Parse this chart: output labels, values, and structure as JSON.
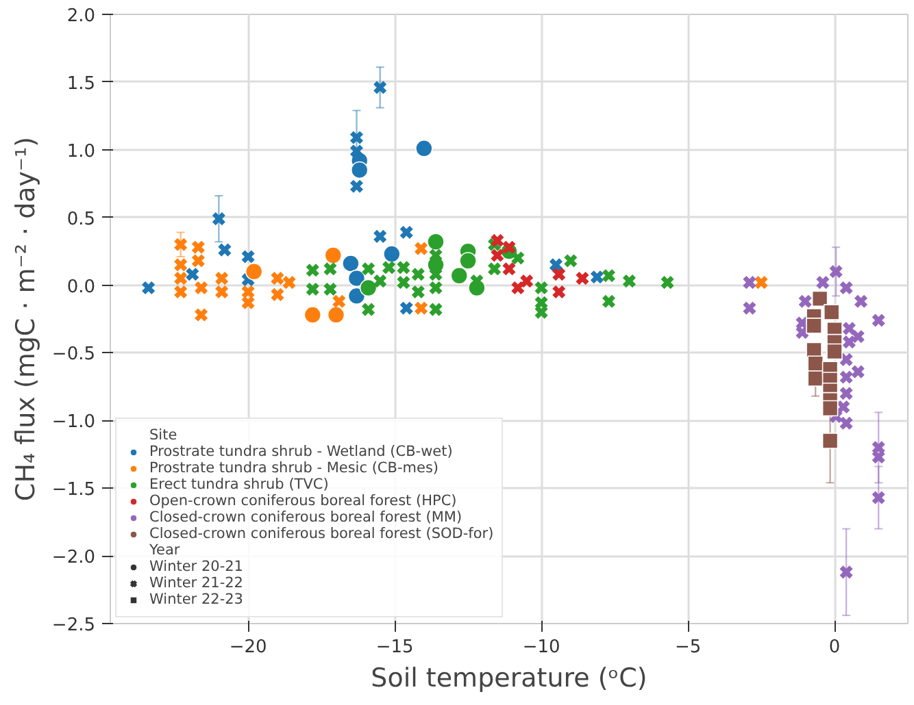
{
  "chart_data": {
    "type": "scatter",
    "xlabel": "Soil temperature (ᵒC)",
    "ylabel": "CH₄ flux (mgC · m⁻² · day⁻¹)",
    "xlim": [
      -24.7,
      2.5
    ],
    "ylim": [
      -2.5,
      2.0
    ],
    "xticks": [
      {
        "value": -20,
        "label": "−20"
      },
      {
        "value": -15,
        "label": "−15"
      },
      {
        "value": -10,
        "label": "−10"
      },
      {
        "value": -5,
        "label": "−5"
      },
      {
        "value": 0,
        "label": "0"
      }
    ],
    "yticks": [
      {
        "value": -2.5,
        "label": "−2.5"
      },
      {
        "value": -2.0,
        "label": "−2.0"
      },
      {
        "value": -1.5,
        "label": "−1.5"
      },
      {
        "value": -1.0,
        "label": "−1.0"
      },
      {
        "value": -0.5,
        "label": "−0.5"
      },
      {
        "value": 0,
        "label": "0.0"
      },
      {
        "value": 0.5,
        "label": "0.5"
      },
      {
        "value": 1.0,
        "label": "1.0"
      },
      {
        "value": 1.5,
        "label": "1.5"
      },
      {
        "value": 2.0,
        "label": "2.0"
      }
    ],
    "grid": true,
    "legend": "bottom left",
    "legend_title": "Site",
    "annotations": [
      "Year"
    ],
    "series": [
      {
        "name": "Prostrate tundra shrub - Wetland (CB-wet)",
        "color": "#1f77b4",
        "marker": "circle",
        "x": [
          -16.2,
          -16.2,
          -14.0,
          -15.1,
          -16.5,
          -16.3,
          -16.3
        ],
        "values": [
          0.92,
          0.85,
          1.01,
          0.23,
          0.16,
          0.05,
          -0.08
        ]
      },
      {
        "color": "#1f77b4",
        "marker": "cross",
        "x": [
          -23.4,
          -21.0,
          -20.8,
          -21.9,
          -20.0,
          -20.0,
          -16.3,
          -16.3,
          -15.5,
          -16.3,
          -15.5,
          -14.6,
          -14.6,
          -9.5,
          -8.1
        ],
        "values": [
          -0.02,
          0.49,
          0.26,
          0.08,
          0.21,
          0.04,
          1.09,
          0.99,
          1.46,
          0.73,
          0.36,
          0.39,
          -0.17,
          0.15,
          0.06
        ],
        "errors": [
          null,
          0.17,
          null,
          null,
          null,
          null,
          0.2,
          null,
          0.15,
          null,
          null,
          null,
          null,
          null,
          null
        ]
      },
      {
        "name": "Prostrate tundra shrub - Mesic (CB-mes)",
        "color": "#ff7f0e",
        "marker": "circle",
        "x": [
          -19.8,
          -17.1,
          -17.8,
          -17.0
        ],
        "values": [
          0.1,
          0.22,
          -0.22,
          -0.22
        ]
      },
      {
        "color": "#ff7f0e",
        "marker": "cross",
        "x": [
          -22.3,
          -22.3,
          -22.3,
          -22.3,
          -21.7,
          -21.7,
          -21.6,
          -21.6,
          -20.9,
          -20.9,
          -20.0,
          -20.0,
          -19.0,
          -19.0,
          -18.6,
          -14.1,
          -14.1,
          -16.9,
          -2.5
        ],
        "values": [
          0.3,
          0.15,
          0.05,
          -0.05,
          0.28,
          0.18,
          -0.02,
          -0.22,
          0.05,
          -0.05,
          -0.05,
          -0.13,
          0.05,
          -0.07,
          0.02,
          0.27,
          -0.17,
          -0.12,
          0.02
        ],
        "errors": [
          0.09,
          null,
          null,
          null,
          null,
          null,
          null,
          null,
          null,
          null,
          null,
          null,
          null,
          null,
          null,
          null,
          null,
          null,
          null
        ]
      },
      {
        "name": "Erect tundra shrub (TVC)",
        "color": "#2ca02c",
        "marker": "circle",
        "x": [
          -13.6,
          -15.9,
          -13.6,
          -12.5,
          -12.5,
          -12.8,
          -12.2,
          -11.1
        ],
        "values": [
          0.32,
          -0.02,
          0.15,
          0.25,
          0.18,
          0.07,
          -0.02,
          0.25
        ]
      },
      {
        "color": "#2ca02c",
        "marker": "cross",
        "x": [
          -17.8,
          -17.8,
          -17.2,
          -17.2,
          -15.9,
          -15.9,
          -15.5,
          -15.2,
          -14.7,
          -14.7,
          -14.2,
          -14.2,
          -13.6,
          -13.6,
          -13.6,
          -13.6,
          -12.2,
          -11.6,
          -11.6,
          -10.8,
          -10.0,
          -10.0,
          -10.0,
          -9.0,
          -7.7,
          -7.7,
          -7.0,
          -5.7
        ],
        "values": [
          0.11,
          -0.03,
          0.12,
          -0.03,
          0.12,
          -0.18,
          0.03,
          0.13,
          0.13,
          0.02,
          0.08,
          -0.05,
          0.22,
          0.08,
          -0.02,
          -0.18,
          0.03,
          0.3,
          0.12,
          0.2,
          -0.02,
          -0.13,
          -0.2,
          0.18,
          0.07,
          -0.12,
          0.03,
          0.02
        ]
      },
      {
        "name": "Open-crown coniferous boreal forest (HPC)",
        "color": "#d62728",
        "marker": "cross",
        "x": [
          -11.5,
          -11.5,
          -11.1,
          -11.1,
          -10.5,
          -9.4,
          -9.4,
          -8.6,
          -10.8
        ],
        "values": [
          0.33,
          0.22,
          0.12,
          0.28,
          0.03,
          0.08,
          -0.05,
          0.05,
          -0.02
        ]
      },
      {
        "name": "Closed-crown coniferous boreal forest (MM)",
        "color": "#9467bd",
        "marker": "cross",
        "x": [
          -2.9,
          -2.9,
          0.05,
          -0.4,
          -1.0,
          0.4,
          0.9,
          -1.1,
          -1.1,
          0.5,
          0.5,
          0.8,
          0.4,
          0.8,
          0.4,
          0.4,
          0.3,
          0.05,
          0.4,
          1.5,
          1.5,
          1.5,
          1.5,
          0.4
        ],
        "values": [
          0.02,
          -0.17,
          0.1,
          0.02,
          -0.12,
          -0.02,
          -0.12,
          -0.28,
          -0.35,
          -0.32,
          -0.42,
          -0.38,
          -0.55,
          -0.64,
          -0.68,
          -0.8,
          -0.9,
          -0.97,
          -1.02,
          -0.26,
          -1.2,
          -1.27,
          -1.57,
          -2.12
        ],
        "errors": [
          null,
          null,
          0.18,
          null,
          null,
          null,
          null,
          null,
          null,
          null,
          null,
          null,
          null,
          null,
          null,
          null,
          null,
          null,
          null,
          null,
          0.26,
          null,
          0.23,
          0.32
        ]
      },
      {
        "name": "Closed-crown coniferous boreal forest (SOD-for)",
        "color": "#8c564b",
        "marker": "square",
        "x": [
          -0.5,
          -0.1,
          -0.7,
          -0.7,
          0.0,
          0.0,
          0.0,
          -0.7,
          -0.65,
          -0.65,
          -0.15,
          -0.15,
          -0.15,
          -0.15,
          -0.15,
          -0.15
        ],
        "values": [
          -0.1,
          -0.2,
          -0.23,
          -0.3,
          -0.33,
          -0.42,
          -0.49,
          -0.48,
          -0.58,
          -0.69,
          -0.62,
          -0.7,
          -0.78,
          -0.85,
          -0.91,
          -1.15
        ],
        "errors": [
          null,
          null,
          null,
          null,
          null,
          null,
          null,
          null,
          null,
          0.13,
          null,
          null,
          null,
          null,
          null,
          0.31
        ]
      },
      {
        "name": "Winter 20-21",
        "color": "#333333",
        "marker": "circle"
      },
      {
        "name": "Winter 21-22",
        "color": "#333333",
        "marker": "cross"
      },
      {
        "name": "Winter 22-23",
        "color": "#333333",
        "marker": "square"
      }
    ]
  }
}
